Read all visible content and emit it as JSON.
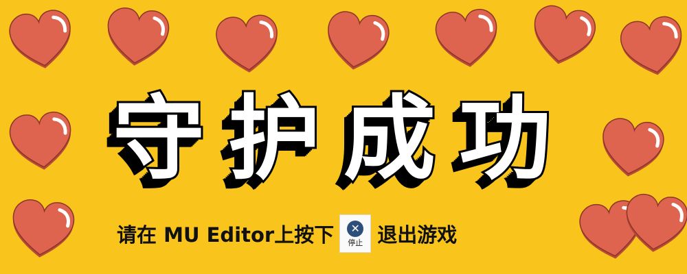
{
  "colors": {
    "background": "#f9c41b",
    "heart_fill": "#de6450",
    "heart_shadow": "#b94a3a",
    "heart_outline": "#8a3626",
    "heart_highlight": "#ffffff"
  },
  "title": "守护成功",
  "instruction": {
    "before": "请在 MU Editor上按下",
    "after": "退出游戏"
  },
  "stop_button": {
    "icon": "close-icon",
    "glyph": "✕",
    "label": "停止"
  }
}
